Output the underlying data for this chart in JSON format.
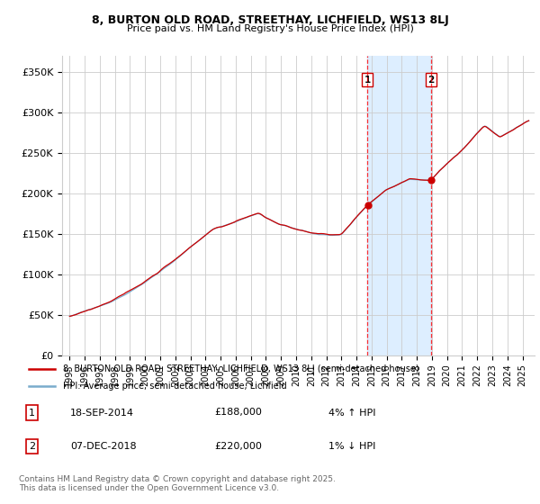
{
  "title1": "8, BURTON OLD ROAD, STREETHAY, LICHFIELD, WS13 8LJ",
  "title2": "Price paid vs. HM Land Registry's House Price Index (HPI)",
  "ylabel_ticks": [
    "£0",
    "£50K",
    "£100K",
    "£150K",
    "£200K",
    "£250K",
    "£300K",
    "£350K"
  ],
  "ytick_vals": [
    0,
    50000,
    100000,
    150000,
    200000,
    250000,
    300000,
    350000
  ],
  "ylim": [
    0,
    370000
  ],
  "xlim_start": 1994.5,
  "xlim_end": 2025.8,
  "legend_line1": "8, BURTON OLD ROAD, STREETHAY, LICHFIELD, WS13 8LJ (semi-detached house)",
  "legend_line2": "HPI: Average price, semi-detached house, Lichfield",
  "annotation1_label": "1",
  "annotation1_date": "18-SEP-2014",
  "annotation1_price": "£188,000",
  "annotation1_info": "4% ↑ HPI",
  "annotation2_label": "2",
  "annotation2_date": "07-DEC-2018",
  "annotation2_price": "£220,000",
  "annotation2_info": "1% ↓ HPI",
  "sale1_x": 2014.72,
  "sale1_y": 188000,
  "sale2_x": 2018.93,
  "sale2_y": 220000,
  "highlight_x1": 2014.72,
  "highlight_x2": 2018.93,
  "red_color": "#cc0000",
  "blue_color": "#7aaccc",
  "highlight_color": "#ddeeff",
  "footnote": "Contains HM Land Registry data © Crown copyright and database right 2025.\nThis data is licensed under the Open Government Licence v3.0."
}
